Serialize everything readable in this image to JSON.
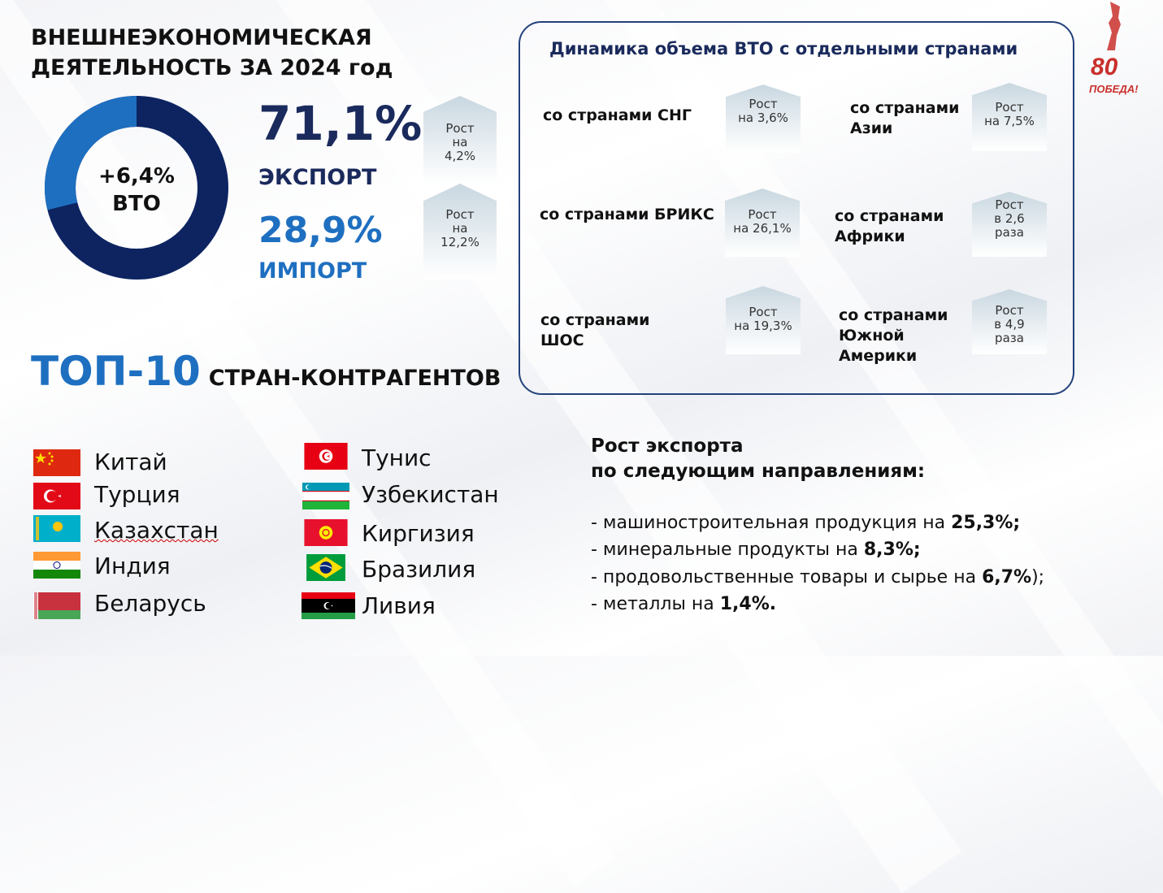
{
  "header": {
    "title_line1": "ВНЕШНЕЭКОНОМИЧЕСКАЯ",
    "title_line2": "ДЕЯТЕЛЬНОСТЬ ЗА 2024 год"
  },
  "donut": {
    "growth": "+6,4%",
    "label": "ВТО",
    "export_share": 71.1,
    "import_share": 28.9,
    "colors": {
      "export": "#0d2461",
      "import": "#1e6fc0"
    }
  },
  "export": {
    "pct": "71,1%",
    "label": "ЭКСПОРТ",
    "growth": [
      "Рост",
      "на",
      "4,2%"
    ]
  },
  "import": {
    "pct": "28,9%",
    "label": "ИМПОРТ",
    "growth": [
      "Рост",
      "на",
      "12,2%"
    ]
  },
  "panel": {
    "title": "Динамика объема ВТО с отдельными странами",
    "groups": [
      {
        "name": [
          "со странами СНГ"
        ],
        "growth": [
          "Рост",
          "на 3,6%"
        ]
      },
      {
        "name": [
          "со странами",
          "Азии"
        ],
        "growth": [
          "Рост",
          "на  7,5%"
        ]
      },
      {
        "name": [
          "со странами БРИКС"
        ],
        "growth": [
          "Рост",
          "на  26,1%"
        ]
      },
      {
        "name": [
          "со странами",
          "Африки"
        ],
        "growth": [
          "Рост",
          "в 2,6",
          "раза"
        ]
      },
      {
        "name": [
          "со странами",
          "ШОС"
        ],
        "growth": [
          "Рост",
          "на  19,3%"
        ]
      },
      {
        "name": [
          "со странами",
          "Южной",
          "Америки"
        ],
        "growth": [
          "Рост",
          "в 4,9",
          "раза"
        ]
      }
    ]
  },
  "top10": {
    "number": "ТОП-10",
    "text": "СТРАН-КОНТРАГЕНТОВ",
    "countries_left": [
      "Китай",
      "Турция",
      "Казахстан",
      "Индия",
      "Беларусь"
    ],
    "countries_right": [
      "Тунис",
      "Узбекистан",
      "Киргизия",
      "Бразилия",
      "Ливия"
    ]
  },
  "directions": {
    "title_line1": "Рост экспорта",
    "title_line2": "по следующим направлениям:",
    "items": [
      {
        "text": "- машиностроительная продукция на ",
        "value": "25,3%",
        "tail": ";"
      },
      {
        "text": "- минеральные продукты на ",
        "value": "8,3%",
        "tail": ";"
      },
      {
        "text": "-  продовольственные товары и сырье на ",
        "value": "6,7%",
        "tail": ");"
      },
      {
        "text": "- металлы на ",
        "value": "1,4%",
        "tail": "."
      }
    ]
  },
  "logo": {
    "number": "80",
    "text": "ПОБЕДА!"
  }
}
